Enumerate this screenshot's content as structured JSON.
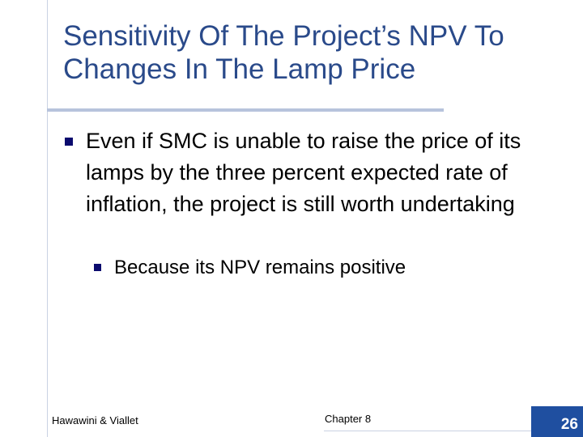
{
  "slide": {
    "title": "Sensitivity Of The Project’s NPV To Changes In The Lamp Price",
    "bullets": [
      {
        "text": "Even if SMC is unable to raise the price of its lamps by the three percent expected rate of inflation, the project is still worth undertaking",
        "sub_bullets": [
          {
            "text": "Because its NPV remains positive"
          }
        ]
      }
    ]
  },
  "footer": {
    "left": "Hawawini & Viallet",
    "center": "Chapter 8",
    "page_number": "26"
  },
  "colors": {
    "title": "#2a4a8a",
    "bullet": "#0b0b6e",
    "accent_box": "#1f4fa0",
    "rule": "#b7c3dc"
  }
}
